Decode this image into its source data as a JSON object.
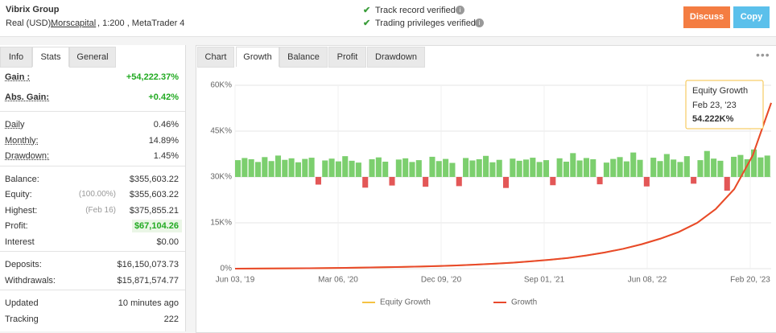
{
  "header": {
    "title": "Vibrix Group",
    "account_type": "Real (USD),",
    "broker": "Morscapital",
    "details": ", 1:200 , MetaTrader 4",
    "verified": [
      "Track record verified",
      "Trading privileges verified"
    ],
    "buttons": [
      "Discuss",
      "Copy"
    ]
  },
  "left_tabs": {
    "labels": [
      "Info",
      "Stats",
      "General"
    ],
    "active": 1
  },
  "stats": [
    [
      {
        "label": "Gain :",
        "value": "+54,222.37%",
        "color": "#22aa22"
      },
      {
        "label": "Abs. Gain:",
        "value": "+0.42%",
        "color": "#22aa22"
      }
    ],
    [
      {
        "label": "Daily",
        "value": "0.46%"
      },
      {
        "label": "Monthly:",
        "value": "14.89%"
      },
      {
        "label": "Drawdown:",
        "value": "1.45%"
      }
    ],
    [
      {
        "label": "Balance:",
        "value": "$355,603.22"
      },
      {
        "label": "Equity:",
        "note": "(100.00%)",
        "value": "$355,603.22"
      },
      {
        "label": "Highest:",
        "note": "(Feb 16)",
        "value": "$375,855.21"
      },
      {
        "label": "Profit:",
        "value": "$67,104.26",
        "color": "#22aa22",
        "highlight": "#eaf6e6"
      },
      {
        "label": "Interest",
        "value": "$0.00"
      }
    ],
    [
      {
        "label": "Deposits:",
        "value": "$16,150,073.73"
      },
      {
        "label": "Withdrawals:",
        "value": "$15,871,574.77"
      }
    ],
    [
      {
        "label": "Updated",
        "value": "10 minutes ago"
      },
      {
        "label": "Tracking",
        "value": "222"
      }
    ]
  ],
  "chart_tabs": {
    "labels": [
      "Chart",
      "Growth",
      "Balance",
      "Profit",
      "Drawdown"
    ],
    "active": 1
  },
  "chart_data": {
    "type": "line",
    "x_labels": [
      "Jun 03, '19",
      "Mar 06, '20",
      "Dec 09, '20",
      "Sep 01, '21",
      "Jun 08, '22",
      "Feb 20, '23"
    ],
    "ylim": [
      0,
      60000
    ],
    "yticks": [
      {
        "value": 0,
        "label": "0%"
      },
      {
        "value": 15000,
        "label": "15K%"
      },
      {
        "value": 30000,
        "label": "30K%"
      },
      {
        "value": 45000,
        "label": "45K%"
      },
      {
        "value": 60000,
        "label": "60K%"
      }
    ],
    "grid": true,
    "series": [
      {
        "name": "Equity Growth",
        "color": "#f5c243",
        "values": [
          0,
          20,
          50,
          90,
          140,
          200,
          270,
          350,
          450,
          560,
          700,
          860,
          1050,
          1300,
          1600,
          1950,
          2400,
          2900,
          3500,
          4300,
          5300,
          6500,
          8000,
          9800,
          12000,
          15000,
          19500,
          26000,
          37000,
          54222
        ]
      },
      {
        "name": "Growth",
        "color": "#e8482c",
        "values": [
          0,
          20,
          50,
          90,
          140,
          200,
          270,
          350,
          450,
          560,
          700,
          860,
          1050,
          1300,
          1600,
          1950,
          2400,
          2900,
          3500,
          4300,
          5300,
          6500,
          8000,
          9800,
          12000,
          15000,
          19500,
          26000,
          37000,
          54222
        ]
      }
    ],
    "bars": {
      "base": 30000,
      "up_color": "#7ccf6e",
      "down_color": "#e35757",
      "values": [
        35500,
        36200,
        35800,
        34900,
        36500,
        35200,
        37000,
        35600,
        36100,
        34800,
        35900,
        36300,
        27500,
        35400,
        36000,
        35100,
        36800,
        35300,
        34700,
        26500,
        35800,
        36400,
        35000,
        27200,
        35700,
        36100,
        34900,
        35500,
        26800,
        36600,
        35200,
        35900,
        34600,
        27000,
        36200,
        35400,
        35800,
        36900,
        34800,
        35600,
        26400,
        36000,
        35300,
        35700,
        36300,
        34900,
        35500,
        27300,
        36100,
        35000,
        37800,
        35400,
        36200,
        35800,
        27600,
        34700,
        35900,
        36500,
        35100,
        38000,
        35600,
        26900,
        36300,
        35200,
        37500,
        35700,
        34900,
        36800,
        27800,
        35500,
        38500,
        36000,
        35300,
        25500,
        36600,
        37200,
        35800,
        39000,
        36400,
        37000
      ]
    },
    "tooltip": {
      "title": "Equity Growth",
      "date": "Feb 23, '23",
      "value": "54.222K%"
    }
  }
}
